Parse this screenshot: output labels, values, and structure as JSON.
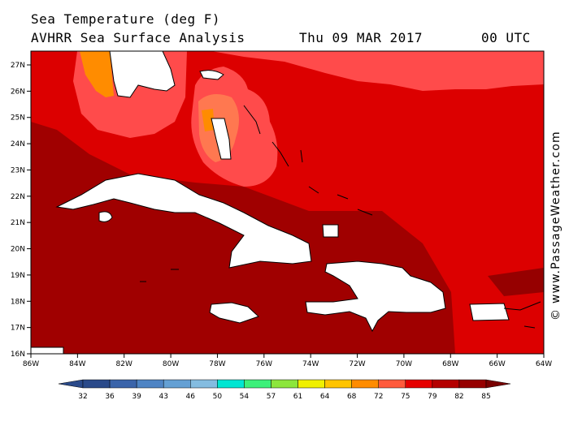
{
  "header": {
    "title_line1": "Sea Temperature (deg F)",
    "title_line2": "AVHRR Sea Surface Analysis",
    "date": "Thu 09 MAR 2017",
    "time": "00 UTC"
  },
  "credit": "© www.PassageWeather.com",
  "axes": {
    "x_ticks": [
      "86W",
      "84W",
      "82W",
      "80W",
      "78W",
      "76W",
      "74W",
      "72W",
      "70W",
      "68W",
      "66W",
      "64W"
    ],
    "y_ticks": [
      "27N",
      "26N",
      "25N",
      "24N",
      "23N",
      "22N",
      "21N",
      "20N",
      "19N",
      "18N",
      "17N",
      "16N"
    ]
  },
  "legend": {
    "values": [
      "32",
      "36",
      "39",
      "43",
      "46",
      "50",
      "54",
      "57",
      "61",
      "64",
      "68",
      "72",
      "75",
      "79",
      "82",
      "85"
    ],
    "colors": [
      "#2a4a8a",
      "#3a64aa",
      "#4e84c4",
      "#64a0d4",
      "#84bce0",
      "#00e6d2",
      "#3cf07a",
      "#8ce63c",
      "#f0f000",
      "#ffc400",
      "#ff8c00",
      "#ff5a3c",
      "#e60000",
      "#b40000",
      "#960000",
      "#780000"
    ]
  },
  "colors": {
    "sst_75": "#ff4b4b",
    "sst_79": "#dc0000",
    "sst_82": "#a00000",
    "sst_72": "#ff7850",
    "sst_68": "#ff8c00",
    "land": "#ffffff"
  }
}
